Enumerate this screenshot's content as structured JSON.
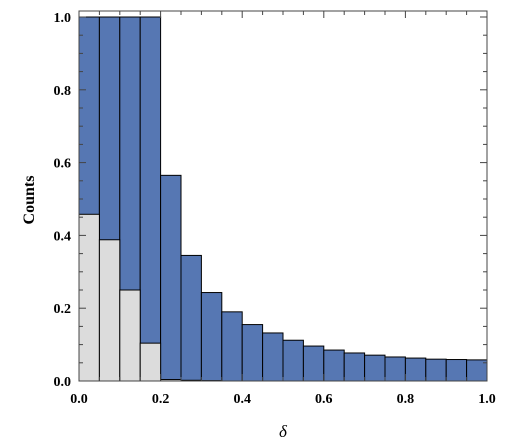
{
  "chart_data": {
    "type": "bar",
    "xlabel": "δ",
    "ylabel": "Counts",
    "xlim": [
      0,
      1.0
    ],
    "ylim": [
      0,
      1.0
    ],
    "x_ticks": [
      "0.0",
      "0.2",
      "0.4",
      "0.6",
      "0.8",
      "1.0"
    ],
    "y_ticks": [
      "0.0",
      "0.2",
      "0.4",
      "0.6",
      "0.8",
      "1.0"
    ],
    "bin_width": 0.05,
    "bin_starts": [
      0.0,
      0.05,
      0.1,
      0.15,
      0.2,
      0.25,
      0.3,
      0.35,
      0.4,
      0.45,
      0.5,
      0.55,
      0.6,
      0.65,
      0.7,
      0.75,
      0.8,
      0.85,
      0.9,
      0.95
    ],
    "series": [
      {
        "color": "#5677b3",
        "values": [
          1.0,
          1.0,
          1.0,
          1.0,
          0.565,
          0.345,
          0.243,
          0.19,
          0.155,
          0.132,
          0.112,
          0.096,
          0.085,
          0.077,
          0.071,
          0.066,
          0.063,
          0.06,
          0.059,
          0.058
        ]
      },
      {
        "color": "#dcdcdc",
        "values": [
          0.458,
          0.388,
          0.25,
          0.104,
          0.004,
          0.002,
          0.001,
          0.0,
          0.0,
          0.0,
          0.0,
          0.0,
          0.0,
          0.0,
          0.0,
          0.0,
          0.0,
          0.0,
          0.0,
          0.0
        ]
      }
    ],
    "grid": false,
    "legend": "none"
  }
}
